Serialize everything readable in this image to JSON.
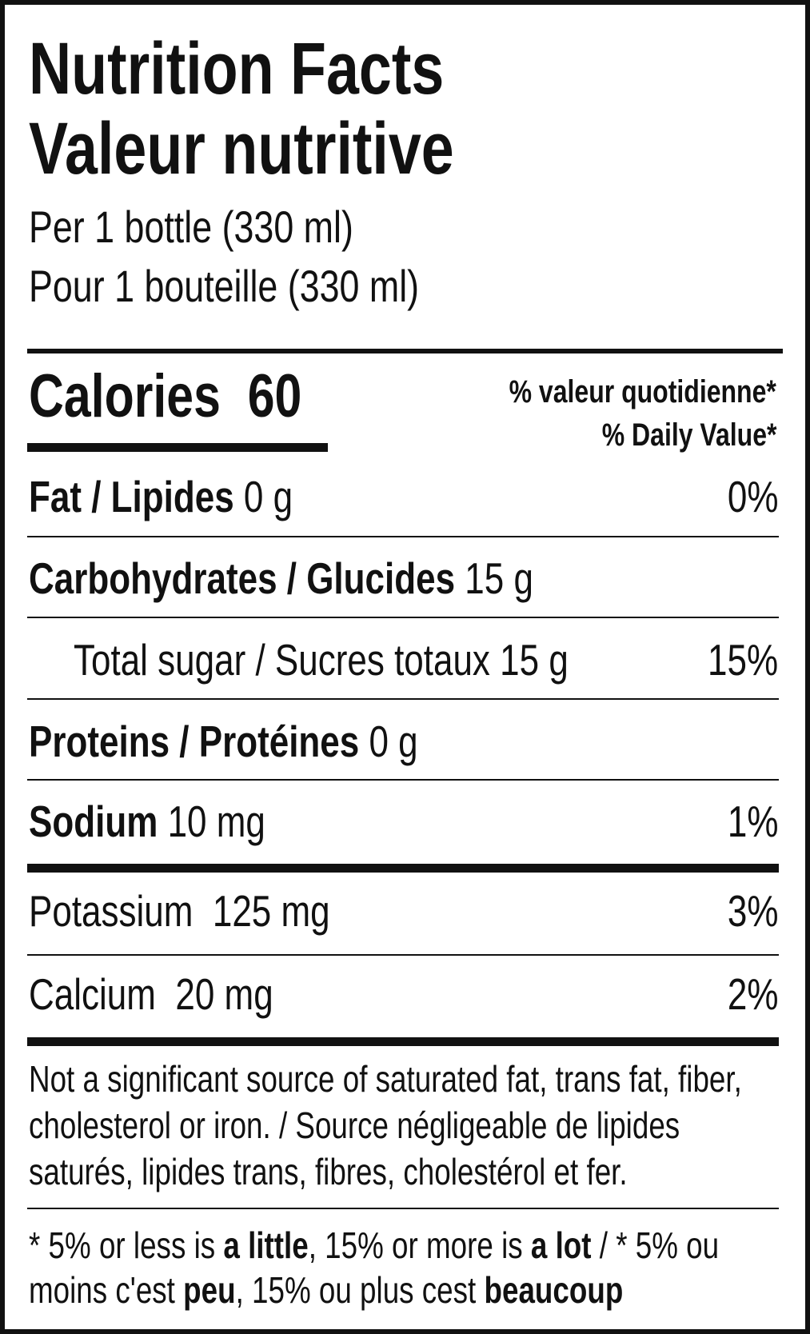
{
  "title_en": "Nutrition Facts",
  "title_fr": "Valeur nutritive",
  "serving_en": "Per 1 bottle (330 ml)",
  "serving_fr": "Pour 1 bouteille (330 ml)",
  "calories": {
    "label": "Calories",
    "value": "60"
  },
  "dv_header_fr": "% valeur quotidienne*",
  "dv_header_en": "% Daily Value*",
  "rows": [
    {
      "label": "Fat / Lipides",
      "amount": "0 g",
      "dv": "0%"
    },
    {
      "label": "Carbohydrates / Glucides",
      "amount": "15 g",
      "dv": ""
    },
    {
      "label": "Total sugar / Sucres totaux",
      "amount": "15 g",
      "dv": "15%"
    },
    {
      "label": "Proteins / Protéines",
      "amount": "0 g",
      "dv": ""
    },
    {
      "label": "Sodium",
      "amount": "10 mg",
      "dv": "1%"
    },
    {
      "label": "Potassium",
      "amount": "125 mg",
      "dv": "3%"
    },
    {
      "label": "Calcium",
      "amount": "20 mg",
      "dv": "2%"
    }
  ],
  "note_lines": [
    "Not a significant source of saturated fat, trans fat, fiber,",
    "cholesterol or iron. / Source négligeable de lipides",
    "saturés, lipides trans, fibres, cholestérol et fer."
  ],
  "footnote": {
    "p1": "* 5% or less is ",
    "b1": "a little",
    "p2": ", 15% or more is ",
    "b2": "a lot",
    "p3": " / * 5% ou",
    "p4": "moins c'est ",
    "b3": "peu",
    "p5": ", 15% ou plus cest ",
    "b4": "beaucoup"
  }
}
